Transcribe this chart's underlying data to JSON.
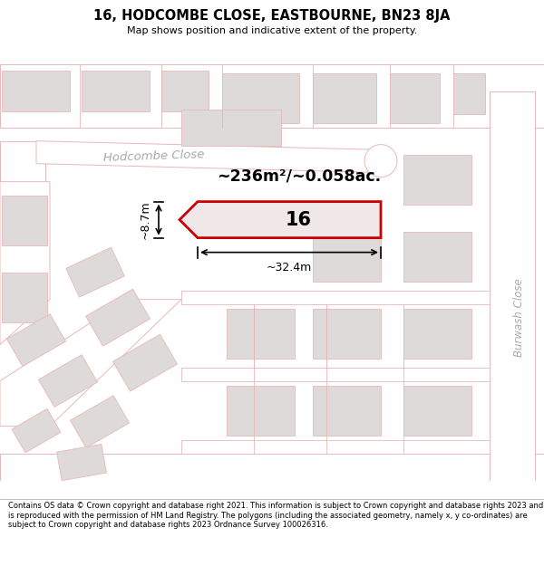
{
  "title": "16, HODCOMBE CLOSE, EASTBOURNE, BN23 8JA",
  "subtitle": "Map shows position and indicative extent of the property.",
  "footer": "Contains OS data © Crown copyright and database right 2021. This information is subject to Crown copyright and database rights 2023 and is reproduced with the permission of HM Land Registry. The polygons (including the associated geometry, namely x, y co-ordinates) are subject to Crown copyright and database rights 2023 Ordnance Survey 100026316.",
  "bg_color": "#eeebeb",
  "road_color": "#ffffff",
  "road_edge": "#e8b8b8",
  "building_color": "#dedad9",
  "building_edge": "#cccccc",
  "highlight_color": "#cc0000",
  "highlight_fill": "#f0e8e8",
  "area_text": "~236m²/~0.058ac.",
  "label_16": "16",
  "dim_width": "~32.4m",
  "dim_height": "~8.7m",
  "road_label": "Hodcombe Close",
  "road_label2": "Burwash Close"
}
